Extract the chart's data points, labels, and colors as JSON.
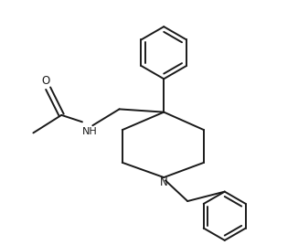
{
  "bg_color": "#ffffff",
  "line_color": "#1a1a1a",
  "lw": 1.4,
  "fig_width": 3.26,
  "fig_height": 2.68,
  "dpi": 100,
  "xlim": [
    0,
    10
  ],
  "ylim": [
    0,
    8.2
  ]
}
